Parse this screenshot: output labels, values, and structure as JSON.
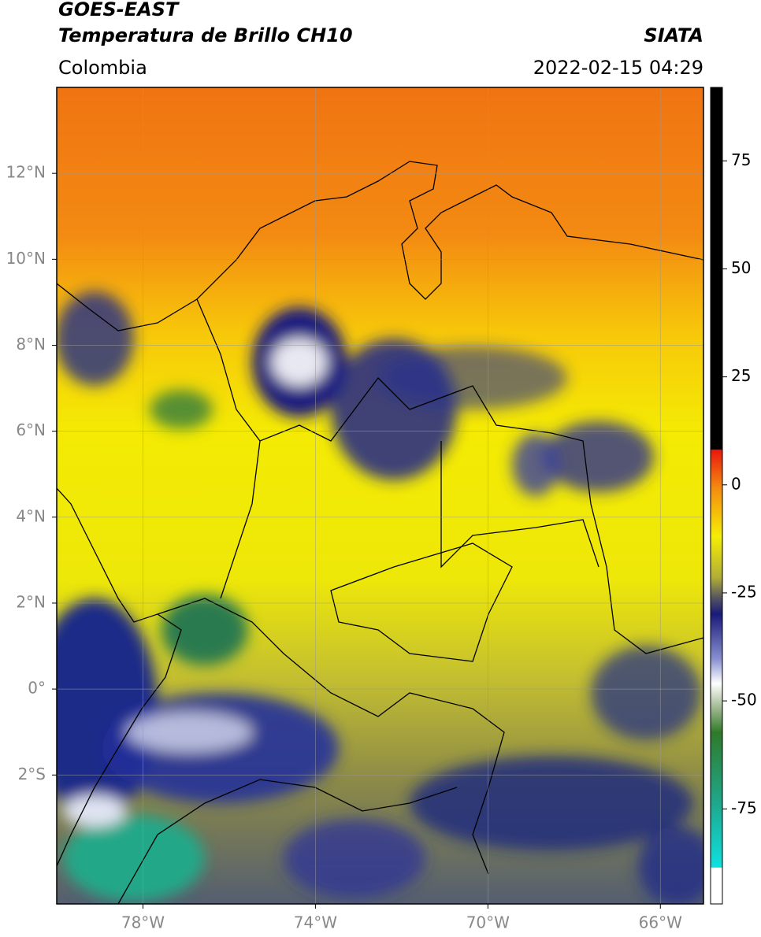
{
  "header": {
    "title": "GOES-EAST",
    "subtitle": "Temperatura de Brillo CH10",
    "region": "Colombia",
    "source": "SIATA",
    "datetime": "2022-02-15 04:29"
  },
  "map": {
    "lonlim": [
      -80,
      -65
    ],
    "latlim": [
      -5,
      14
    ],
    "xticks": [
      {
        "value": -78,
        "label": "78°W"
      },
      {
        "value": -74,
        "label": "74°W"
      },
      {
        "value": -70,
        "label": "70°W"
      },
      {
        "value": -66,
        "label": "66°W"
      }
    ],
    "yticks": [
      {
        "value": 12,
        "label": "12°N"
      },
      {
        "value": 10,
        "label": "10°N"
      },
      {
        "value": 8,
        "label": "8°N"
      },
      {
        "value": 6,
        "label": "6°N"
      },
      {
        "value": 4,
        "label": "4°N"
      },
      {
        "value": 2,
        "label": "2°N"
      },
      {
        "value": 0,
        "label": "0°"
      },
      {
        "value": -2,
        "label": "2°S"
      }
    ],
    "grid": true
  },
  "colorbar": {
    "lim": [
      -97,
      92
    ],
    "ticks": [
      75,
      50,
      25,
      0,
      -25,
      -50,
      -75
    ]
  }
}
